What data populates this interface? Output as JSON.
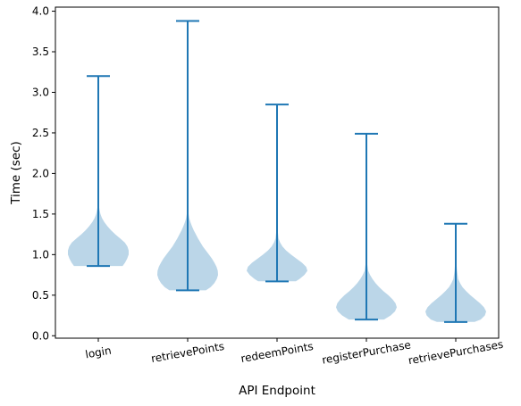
{
  "chart_data": {
    "type": "violin",
    "xlabel": "API Endpoint",
    "ylabel": "Time (sec)",
    "categories": [
      "login",
      "retrievePoints",
      "redeemPoints",
      "registerPurchase",
      "retrievePurchases"
    ],
    "ylim": [
      -0.03,
      4.05
    ],
    "yticks": [
      0.0,
      0.5,
      1.0,
      1.5,
      2.0,
      2.5,
      3.0,
      3.5,
      4.0
    ],
    "ytick_labels": [
      "0.0",
      "0.5",
      "1.0",
      "1.5",
      "2.0",
      "2.5",
      "3.0",
      "3.5",
      "4.0"
    ],
    "grid": false,
    "fill_color": "#1f77b4",
    "line_color": "#1f77b4",
    "fill_opacity": 0.3,
    "series": [
      {
        "min": 0.86,
        "max": 3.2,
        "density": [
          [
            0.86,
            0.8
          ],
          [
            0.9,
            0.88
          ],
          [
            0.95,
            0.95
          ],
          [
            1.0,
            1.0
          ],
          [
            1.05,
            1.0
          ],
          [
            1.1,
            0.96
          ],
          [
            1.15,
            0.87
          ],
          [
            1.2,
            0.72
          ],
          [
            1.25,
            0.56
          ],
          [
            1.3,
            0.42
          ],
          [
            1.35,
            0.3
          ],
          [
            1.4,
            0.2
          ],
          [
            1.45,
            0.12
          ],
          [
            1.5,
            0.07
          ],
          [
            1.55,
            0.04
          ],
          [
            1.6,
            0.02
          ],
          [
            1.7,
            0.01
          ],
          [
            2.0,
            0.0
          ],
          [
            3.2,
            0.0
          ]
        ]
      },
      {
        "min": 0.56,
        "max": 3.88,
        "density": [
          [
            0.56,
            0.6
          ],
          [
            0.6,
            0.76
          ],
          [
            0.65,
            0.88
          ],
          [
            0.7,
            0.96
          ],
          [
            0.75,
            1.0
          ],
          [
            0.8,
            0.99
          ],
          [
            0.85,
            0.95
          ],
          [
            0.9,
            0.88
          ],
          [
            0.95,
            0.8
          ],
          [
            1.0,
            0.7
          ],
          [
            1.05,
            0.6
          ],
          [
            1.1,
            0.5
          ],
          [
            1.15,
            0.42
          ],
          [
            1.2,
            0.34
          ],
          [
            1.25,
            0.27
          ],
          [
            1.3,
            0.2
          ],
          [
            1.35,
            0.14
          ],
          [
            1.4,
            0.09
          ],
          [
            1.45,
            0.05
          ],
          [
            1.5,
            0.03
          ],
          [
            1.55,
            0.01
          ],
          [
            1.7,
            0.0
          ],
          [
            3.88,
            0.0
          ]
        ]
      },
      {
        "min": 0.67,
        "max": 2.85,
        "density": [
          [
            0.67,
            0.62
          ],
          [
            0.7,
            0.74
          ],
          [
            0.75,
            0.9
          ],
          [
            0.8,
            1.0
          ],
          [
            0.85,
            0.96
          ],
          [
            0.9,
            0.82
          ],
          [
            0.95,
            0.64
          ],
          [
            1.0,
            0.46
          ],
          [
            1.05,
            0.3
          ],
          [
            1.1,
            0.18
          ],
          [
            1.15,
            0.1
          ],
          [
            1.2,
            0.05
          ],
          [
            1.3,
            0.02
          ],
          [
            1.5,
            0.0
          ],
          [
            2.85,
            0.0
          ]
        ]
      },
      {
        "min": 0.2,
        "max": 2.49,
        "density": [
          [
            0.2,
            0.58
          ],
          [
            0.25,
            0.8
          ],
          [
            0.3,
            0.94
          ],
          [
            0.35,
            1.0
          ],
          [
            0.4,
            0.96
          ],
          [
            0.45,
            0.86
          ],
          [
            0.5,
            0.72
          ],
          [
            0.55,
            0.56
          ],
          [
            0.6,
            0.42
          ],
          [
            0.65,
            0.3
          ],
          [
            0.7,
            0.2
          ],
          [
            0.75,
            0.12
          ],
          [
            0.8,
            0.06
          ],
          [
            0.9,
            0.02
          ],
          [
            1.1,
            0.0
          ],
          [
            2.49,
            0.0
          ]
        ]
      },
      {
        "min": 0.17,
        "max": 1.38,
        "density": [
          [
            0.17,
            0.62
          ],
          [
            0.2,
            0.82
          ],
          [
            0.25,
            0.96
          ],
          [
            0.3,
            1.0
          ],
          [
            0.35,
            0.93
          ],
          [
            0.4,
            0.8
          ],
          [
            0.45,
            0.64
          ],
          [
            0.5,
            0.48
          ],
          [
            0.55,
            0.34
          ],
          [
            0.6,
            0.22
          ],
          [
            0.65,
            0.14
          ],
          [
            0.7,
            0.08
          ],
          [
            0.8,
            0.04
          ],
          [
            0.9,
            0.02
          ],
          [
            1.0,
            0.01
          ],
          [
            1.38,
            0.0
          ]
        ]
      }
    ]
  }
}
